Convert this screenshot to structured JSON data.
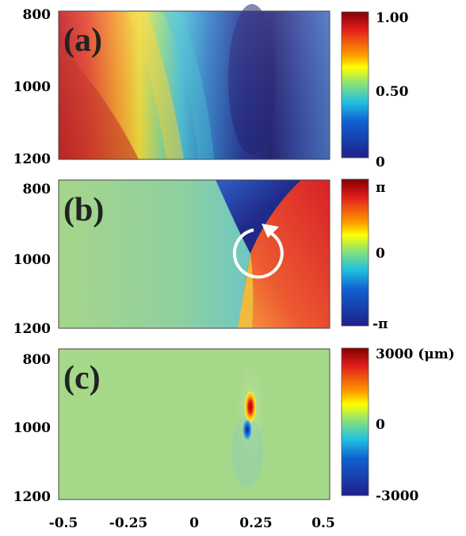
{
  "chart_data": [
    {
      "type": "heatmap",
      "panel_label": "(a)",
      "y_ticks": [
        "800",
        "1000",
        "1200"
      ],
      "y_tick_values": [
        800,
        1000,
        1200
      ],
      "colorbar": {
        "tick_labels": [
          "1.00",
          "0.50",
          "0"
        ],
        "range": [
          0,
          1
        ]
      },
      "description_values": {
        "max_region": "left",
        "min_region": "x≈0.25"
      }
    },
    {
      "type": "heatmap",
      "panel_label": "(b)",
      "y_ticks": [
        "800",
        "1000",
        "1200"
      ],
      "y_tick_values": [
        800,
        1000,
        1200
      ],
      "colorbar": {
        "tick_labels": [
          "π",
          "0",
          "-π"
        ],
        "range": [
          -3.1416,
          3.1416
        ]
      },
      "phase_singularity": {
        "x": 0.22,
        "y": 960
      }
    },
    {
      "type": "heatmap",
      "panel_label": "(c)",
      "y_ticks": [
        "800",
        "1000",
        "1200"
      ],
      "y_tick_values": [
        800,
        1000,
        1200
      ],
      "x_ticks": [
        "-0.5",
        "-0.25",
        "0",
        "0.25",
        "0.5"
      ],
      "x_tick_values": [
        -0.5,
        -0.25,
        0,
        0.25,
        0.5
      ],
      "colorbar": {
        "tick_labels": [
          "3000 (μm)",
          "0",
          "-3000"
        ],
        "range": [
          -3000,
          3000
        ]
      },
      "peak": {
        "x": 0.22,
        "y": 955,
        "value": 3000
      },
      "trough": {
        "x": 0.22,
        "y": 1010,
        "value": -3000
      }
    }
  ]
}
